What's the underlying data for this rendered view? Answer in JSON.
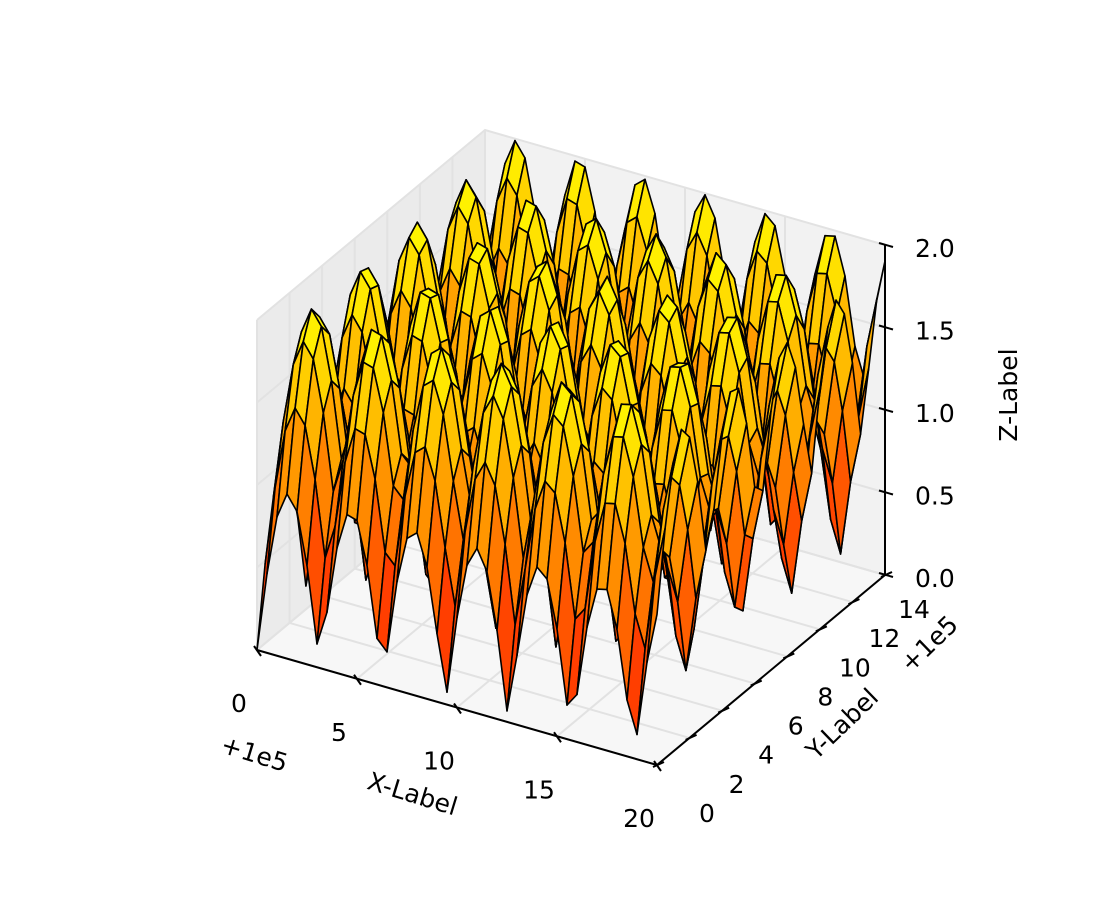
{
  "chart_data": {
    "type": "surface3d",
    "function": "abs(sin(x)) + abs(sin(y))",
    "xlabel": "X-Label",
    "ylabel": "Y-Label",
    "zlabel": "Z-Label",
    "x_offset_label": "+1e5",
    "y_offset_label": "+1e5",
    "xlim": [
      0,
      20
    ],
    "ylim": [
      0,
      14
    ],
    "zlim": [
      0,
      2
    ],
    "x_ticks": [
      0,
      5,
      10,
      15,
      20
    ],
    "y_ticks": [
      0,
      2,
      4,
      6,
      8,
      10,
      12,
      14
    ],
    "z_ticks": [
      "0.0",
      "0.5",
      "1.0",
      "1.5",
      "2.0"
    ],
    "x_tick_labels": [
      "0",
      "5",
      "10",
      "15",
      "20"
    ],
    "y_tick_labels": [
      "0",
      "2",
      "4",
      "6",
      "8",
      "10",
      "12",
      "14"
    ],
    "z_tick_labels": [
      "0.0",
      "0.5",
      "1.0",
      "1.5",
      "2.0"
    ],
    "grid": true,
    "colormap": "autumn",
    "colormap_colors": [
      "#ff0000",
      "#ffff00"
    ],
    "edge_color": "#000000",
    "grid_resolution": 0.5
  }
}
